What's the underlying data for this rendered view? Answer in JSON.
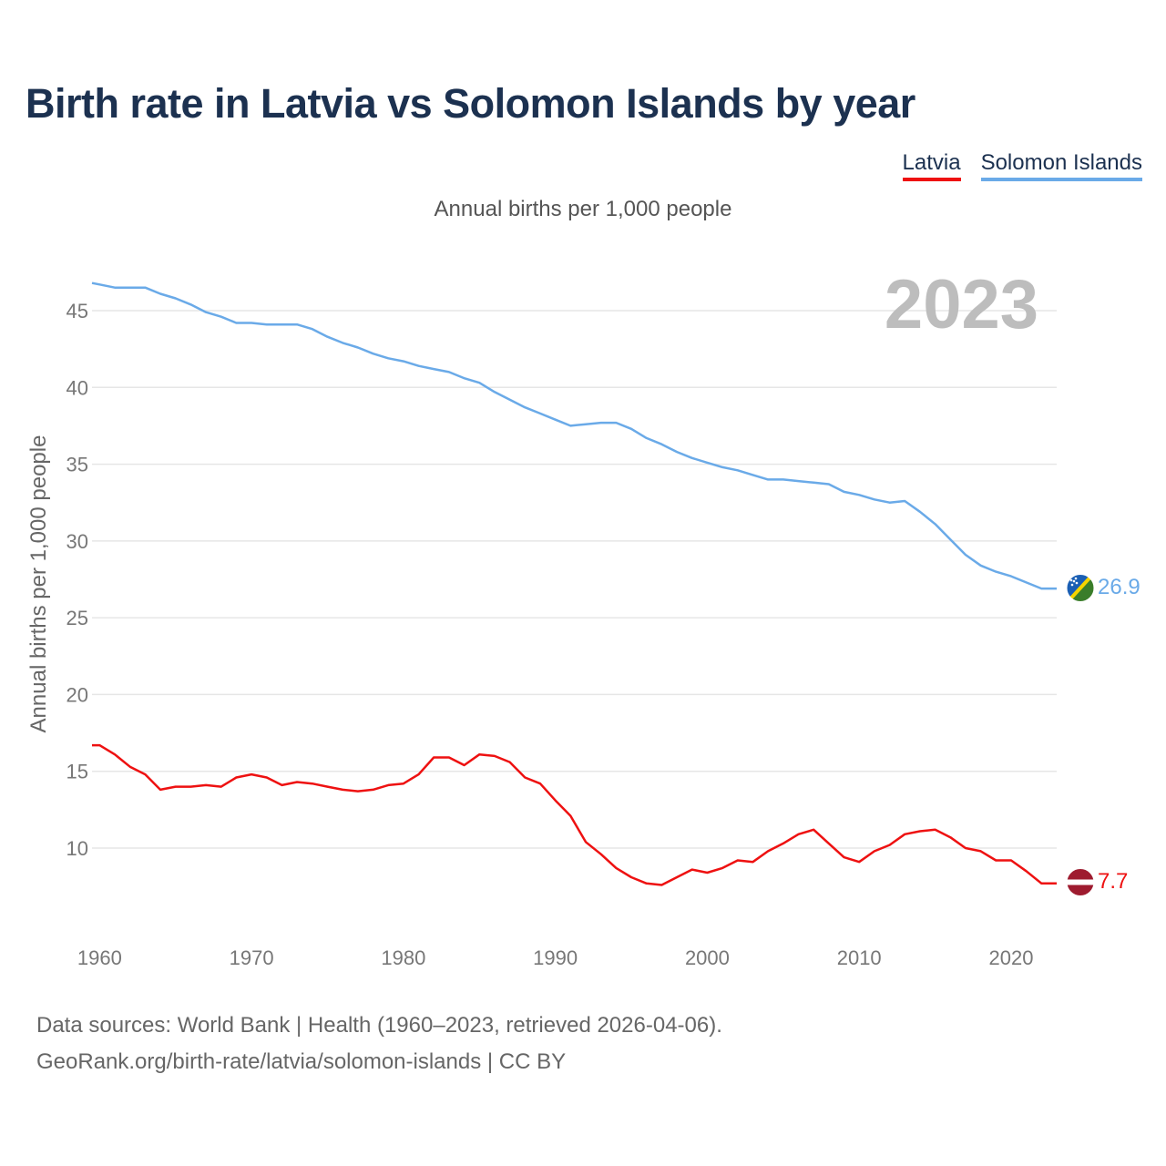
{
  "header": {
    "title": "Birth rate in Latvia vs Solomon Islands by year",
    "subtitle": "Annual births per 1,000 people"
  },
  "legend": {
    "latvia": "Latvia",
    "solomon": "Solomon Islands"
  },
  "footer": {
    "source_line": "Data sources: World Bank | Health (1960–2023, retrieved 2026-04-06).",
    "url_line": "GeoRank.org/birth-rate/latvia/solomon-islands | CC BY"
  },
  "colors": {
    "latvia": "#ee1111",
    "solomon": "#6aaae8",
    "title": "#1c3150",
    "grid": "#e6e6e6"
  },
  "chart_data": {
    "type": "line",
    "title": "Birth rate in Latvia vs Solomon Islands by year",
    "ylabel": "Annual births per 1,000 people",
    "xlabel": "",
    "year_label": "2023",
    "xlim": [
      1959.5,
      2023
    ],
    "ylim": [
      5,
      48
    ],
    "xticks": [
      1960,
      1970,
      1980,
      1990,
      2000,
      2010,
      2020
    ],
    "yticks": [
      10,
      15,
      20,
      25,
      30,
      35,
      40,
      45
    ],
    "grid": true,
    "x_start": 1959.5,
    "series": [
      {
        "name": "Latvia",
        "end_label": "7.7",
        "values": [
          16.7,
          16.7,
          16.1,
          15.3,
          14.8,
          13.8,
          14.0,
          14.0,
          14.1,
          14.0,
          14.6,
          14.8,
          14.6,
          14.1,
          14.3,
          14.2,
          14.0,
          13.8,
          13.7,
          13.8,
          14.1,
          14.2,
          14.8,
          15.9,
          15.9,
          15.4,
          16.1,
          16.0,
          15.6,
          14.6,
          14.2,
          13.1,
          12.1,
          10.4,
          9.6,
          8.7,
          8.1,
          7.7,
          7.6,
          8.1,
          8.6,
          8.4,
          8.7,
          9.2,
          9.1,
          9.8,
          10.3,
          10.9,
          11.2,
          10.3,
          9.4,
          9.1,
          9.8,
          10.2,
          10.9,
          11.1,
          11.2,
          10.7,
          10.0,
          9.8,
          9.2,
          9.2,
          8.5,
          7.7,
          7.7
        ]
      },
      {
        "name": "Solomon Islands",
        "end_label": "26.9",
        "values": [
          46.8,
          46.7,
          46.5,
          46.5,
          46.5,
          46.1,
          45.8,
          45.4,
          44.9,
          44.6,
          44.2,
          44.2,
          44.1,
          44.1,
          44.1,
          43.8,
          43.3,
          42.9,
          42.6,
          42.2,
          41.9,
          41.7,
          41.4,
          41.2,
          41.0,
          40.6,
          40.3,
          39.7,
          39.2,
          38.7,
          38.3,
          37.9,
          37.5,
          37.6,
          37.7,
          37.7,
          37.3,
          36.7,
          36.3,
          35.8,
          35.4,
          35.1,
          34.8,
          34.6,
          34.3,
          34.0,
          34.0,
          33.9,
          33.8,
          33.7,
          33.2,
          33.0,
          32.7,
          32.5,
          32.6,
          31.9,
          31.1,
          30.1,
          29.1,
          28.4,
          28.0,
          27.7,
          27.3,
          26.9,
          26.9
        ]
      }
    ]
  }
}
